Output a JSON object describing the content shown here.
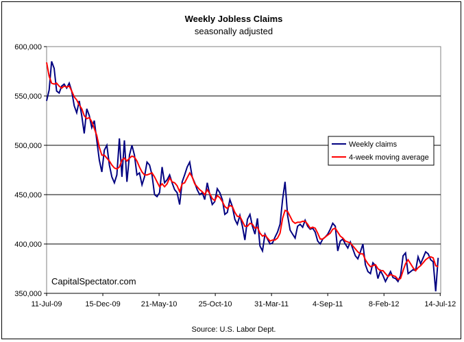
{
  "chart_data": {
    "type": "line",
    "title": "Weekly Jobless Claims",
    "subtitle": "seasonally adjusted",
    "source": "Source: U.S. Labor Dept.",
    "watermark": "CapitalSpectator.com",
    "x_tick_labels": [
      "11-Jul-09",
      "15-Dec-09",
      "21-May-10",
      "25-Oct-10",
      "31-Mar-11",
      "4-Sep-11",
      "8-Feb-12",
      "14-Jul-12"
    ],
    "y_tick_labels": [
      "350,000",
      "400,000",
      "450,000",
      "500,000",
      "550,000",
      "600,000"
    ],
    "ylim": [
      350000,
      600000
    ],
    "y_ticks": [
      350000,
      400000,
      450000,
      500000,
      550000,
      600000
    ],
    "x_range_weeks": [
      0,
      157
    ],
    "x_tick_weeks": [
      0,
      22.4,
      44.8,
      67.2,
      89.6,
      112,
      134.4,
      156.8
    ],
    "grid": true,
    "legend_position": "right",
    "series": [
      {
        "name": "Weekly claims",
        "color": "#000080",
        "values": [
          545000,
          556000,
          585000,
          578000,
          555000,
          553000,
          560000,
          562000,
          558000,
          563000,
          555000,
          540000,
          533000,
          545000,
          530000,
          512000,
          537000,
          530000,
          518000,
          525000,
          505000,
          485000,
          473000,
          495000,
          500000,
          480000,
          468000,
          462000,
          470000,
          507000,
          468000,
          505000,
          463000,
          490000,
          500000,
          490000,
          470000,
          472000,
          460000,
          468000,
          483000,
          480000,
          470000,
          450000,
          448000,
          452000,
          478000,
          462000,
          465000,
          470000,
          462000,
          455000,
          452000,
          440000,
          463000,
          470000,
          478000,
          483000,
          468000,
          462000,
          455000,
          450000,
          452000,
          445000,
          462000,
          450000,
          440000,
          443000,
          456000,
          452000,
          445000,
          430000,
          432000,
          445000,
          438000,
          425000,
          420000,
          429000,
          418000,
          404000,
          425000,
          430000,
          418000,
          410000,
          426000,
          398000,
          393000,
          410000,
          405000,
          400000,
          401000,
          407000,
          412000,
          420000,
          445000,
          463000,
          429000,
          414000,
          410000,
          406000,
          418000,
          420000,
          417000,
          424000,
          418000,
          415000,
          416000,
          412000,
          403000,
          400000,
          405000,
          407000,
          410000,
          415000,
          421000,
          418000,
          393000,
          403000,
          405000,
          400000,
          396000,
          402000,
          395000,
          388000,
          385000,
          392000,
          400000,
          379000,
          372000,
          370000,
          381000,
          378000,
          365000,
          373000,
          368000,
          362000,
          367000,
          372000,
          366000,
          365000,
          362000,
          368000,
          388000,
          391000,
          370000,
          372000,
          374000,
          373000,
          387000,
          380000,
          386000,
          392000,
          390000,
          384000,
          382000,
          352000,
          386000
        ],
        "marker": "none"
      },
      {
        "name": "4-week moving average",
        "color": "#ff0000",
        "values": [
          584000,
          570000,
          563000,
          562000,
          563000,
          560000,
          558000,
          560000,
          559000,
          560000,
          555000,
          549000,
          546000,
          541000,
          537000,
          530000,
          527000,
          528000,
          524000,
          517000,
          510000,
          498000,
          490000,
          490000,
          487000,
          484000,
          480000,
          477000,
          476000,
          478000,
          485000,
          487000,
          484000,
          487000,
          489000,
          488000,
          484000,
          478000,
          473000,
          470000,
          470000,
          471000,
          472000,
          468000,
          463000,
          458000,
          461000,
          458000,
          461000,
          467000,
          463000,
          462000,
          459000,
          453000,
          461000,
          462000,
          467000,
          472000,
          468000,
          461000,
          458000,
          455000,
          453000,
          450000,
          455000,
          451000,
          446000,
          444000,
          449000,
          447000,
          443000,
          438000,
          436000,
          439000,
          438000,
          432000,
          428000,
          428000,
          423000,
          418000,
          418000,
          421000,
          420000,
          416000,
          417000,
          411000,
          408000,
          409000,
          406000,
          403000,
          404000,
          404000,
          406000,
          411000,
          426000,
          434000,
          433000,
          428000,
          423000,
          421000,
          422000,
          422000,
          423000,
          423000,
          420000,
          416000,
          417000,
          416000,
          411000,
          405000,
          405000,
          407000,
          409000,
          411000,
          415000,
          416000,
          412000,
          408000,
          406000,
          403000,
          402000,
          401000,
          398000,
          395000,
          392000,
          390000,
          390000,
          384000,
          380000,
          377000,
          378000,
          379000,
          375000,
          373000,
          373000,
          370000,
          367000,
          369000,
          368000,
          367000,
          364000,
          365000,
          373000,
          380000,
          384000,
          380000,
          376000,
          373000,
          376000,
          378000,
          381000,
          384000,
          386000,
          387000,
          386000,
          378000,
          377000
        ]
      }
    ]
  }
}
